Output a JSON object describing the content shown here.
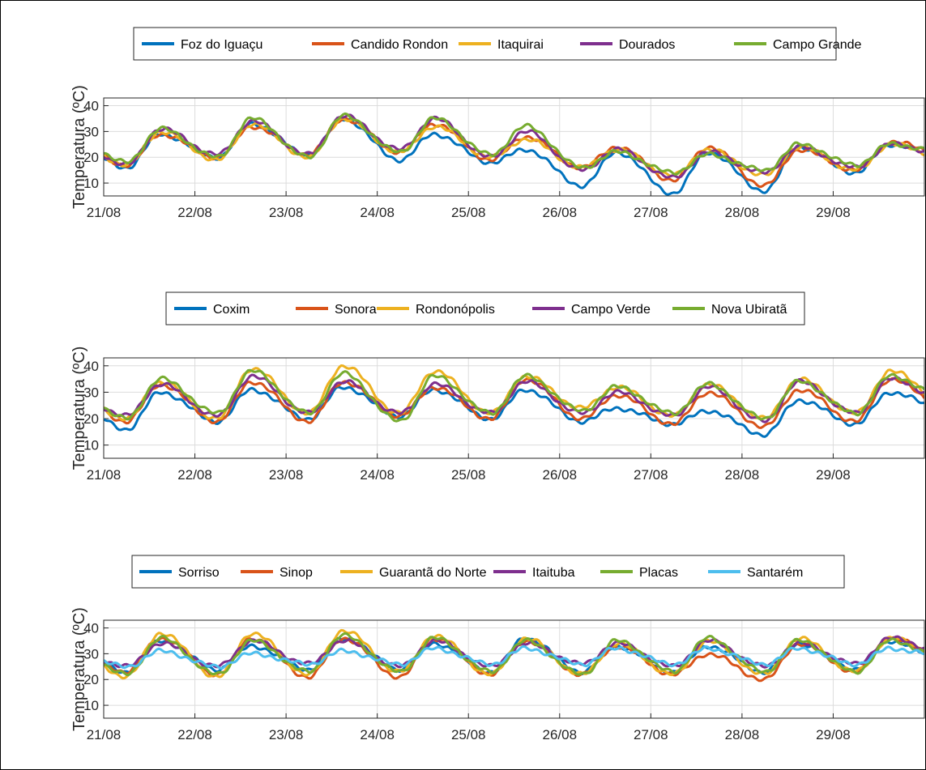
{
  "colors": {
    "blue": "#0072BD",
    "orange": "#D95319",
    "yellow": "#EDB120",
    "purple": "#7E2F8E",
    "green": "#77AC30",
    "cyan": "#4DBEEE"
  },
  "chart_data": [
    {
      "type": "line",
      "ylabel": "Temperatura (ºC)",
      "ylim": [
        5,
        43
      ],
      "yticks": [
        10,
        20,
        30,
        40
      ],
      "xlim": [
        "2020-08-21T00:00",
        "2020-08-30T00:00"
      ],
      "xticks": [
        "21/08",
        "22/08",
        "23/08",
        "24/08",
        "25/08",
        "26/08",
        "27/08",
        "28/08",
        "29/08"
      ],
      "grid": true,
      "legend_position": "top",
      "series": [
        {
          "name": "Foz do Iguaçu",
          "color": "blue",
          "min": [
            16,
            20,
            21,
            19,
            18,
            9,
            6,
            7,
            14,
            20
          ],
          "max": [
            29,
            33,
            35,
            29,
            23,
            22,
            22,
            24,
            25
          ]
        },
        {
          "name": "Candido Rondon",
          "color": "orange",
          "min": [
            17,
            20,
            21,
            22,
            19,
            16,
            11,
            9,
            15,
            21
          ],
          "max": [
            29,
            32,
            35,
            33,
            28,
            24,
            24,
            23,
            26
          ]
        },
        {
          "name": "Itaquirai",
          "color": "yellow",
          "min": [
            17,
            19,
            20,
            22,
            20,
            16,
            13,
            13,
            15,
            20
          ],
          "max": [
            30,
            33,
            35,
            32,
            27,
            23,
            23,
            24,
            25
          ]
        },
        {
          "name": "Dourados",
          "color": "purple",
          "min": [
            17,
            21,
            21,
            23,
            20,
            15,
            12,
            14,
            16,
            21
          ],
          "max": [
            31,
            34,
            36,
            35,
            30,
            23,
            22,
            24,
            25
          ]
        },
        {
          "name": "Campo Grande",
          "color": "green",
          "min": [
            18,
            20,
            20,
            22,
            21,
            16,
            14,
            15,
            17,
            22
          ],
          "max": [
            31,
            35,
            36,
            35,
            32,
            22,
            21,
            25,
            25
          ]
        }
      ]
    },
    {
      "type": "line",
      "ylabel": "Temperatura (ºC)",
      "ylim": [
        5,
        43
      ],
      "yticks": [
        10,
        20,
        30,
        40
      ],
      "xlim": [
        "2020-08-21T00:00",
        "2020-08-30T00:00"
      ],
      "xticks": [
        "21/08",
        "22/08",
        "23/08",
        "24/08",
        "25/08",
        "26/08",
        "27/08",
        "28/08",
        "29/08"
      ],
      "grid": true,
      "legend_position": "top",
      "series": [
        {
          "name": "Coxim",
          "color": "blue",
          "min": [
            16,
            19,
            20,
            21,
            20,
            19,
            18,
            14,
            18,
            23
          ],
          "max": [
            30,
            31,
            32,
            31,
            31,
            24,
            23,
            27,
            30
          ]
        },
        {
          "name": "Sonora",
          "color": "orange",
          "min": [
            19,
            19,
            19,
            21,
            20,
            20,
            18,
            17,
            19,
            24
          ],
          "max": [
            33,
            34,
            34,
            32,
            35,
            29,
            30,
            31,
            35
          ]
        },
        {
          "name": "Rondonópolis",
          "color": "yellow",
          "min": [
            20,
            20,
            22,
            22,
            22,
            24,
            21,
            20,
            22,
            26
          ],
          "max": [
            34,
            39,
            40,
            38,
            36,
            32,
            33,
            35,
            38
          ]
        },
        {
          "name": "Campo Verde",
          "color": "purple",
          "min": [
            21,
            21,
            22,
            22,
            22,
            22,
            21,
            19,
            22,
            27
          ],
          "max": [
            33,
            36,
            34,
            33,
            34,
            30,
            32,
            34,
            35
          ]
        },
        {
          "name": "Nova Ubiratã",
          "color": "green",
          "min": [
            20,
            22,
            22,
            19,
            22,
            23,
            22,
            20,
            22,
            28
          ],
          "max": [
            35,
            38,
            37,
            36,
            36,
            32,
            33,
            34,
            36
          ]
        }
      ]
    },
    {
      "type": "line",
      "ylabel": "Temperatura (ºC)",
      "ylim": [
        5,
        43
      ],
      "yticks": [
        10,
        20,
        30,
        40
      ],
      "xlim": [
        "2020-08-21T00:00",
        "2020-08-30T00:00"
      ],
      "xticks": [
        "21/08",
        "22/08",
        "23/08",
        "24/08",
        "25/08",
        "26/08",
        "27/08",
        "28/08",
        "29/08"
      ],
      "grid": true,
      "legend_position": "top",
      "series": [
        {
          "name": "Sorriso",
          "color": "blue",
          "min": [
            23,
            24,
            24,
            24,
            23,
            23,
            23,
            23,
            24,
            27
          ],
          "max": [
            35,
            33,
            36,
            34,
            36,
            33,
            33,
            34,
            35
          ]
        },
        {
          "name": "Sinop",
          "color": "orange",
          "min": [
            23,
            22,
            21,
            21,
            22,
            22,
            22,
            20,
            23,
            28
          ],
          "max": [
            36,
            36,
            36,
            36,
            35,
            33,
            30,
            34,
            36
          ]
        },
        {
          "name": "Guarantã do Norte",
          "color": "yellow",
          "min": [
            21,
            21,
            22,
            23,
            22,
            22,
            22,
            22,
            23,
            28
          ],
          "max": [
            38,
            38,
            39,
            37,
            36,
            34,
            35,
            36,
            36
          ]
        },
        {
          "name": "Itaituba",
          "color": "purple",
          "min": [
            25,
            25,
            26,
            25,
            25,
            26,
            25,
            25,
            26,
            30
          ],
          "max": [
            34,
            35,
            35,
            35,
            34,
            34,
            35,
            34,
            36
          ]
        },
        {
          "name": "Placas",
          "color": "green",
          "min": [
            22,
            22,
            23,
            23,
            23,
            22,
            23,
            23,
            23,
            28
          ],
          "max": [
            36,
            35,
            37,
            36,
            35,
            35,
            36,
            35,
            35
          ]
        },
        {
          "name": "Santarém",
          "color": "cyan",
          "min": [
            25,
            25,
            26,
            26,
            26,
            26,
            26,
            26,
            26,
            29
          ],
          "max": [
            31,
            30,
            31,
            32,
            32,
            32,
            32,
            32,
            32
          ]
        }
      ]
    }
  ]
}
